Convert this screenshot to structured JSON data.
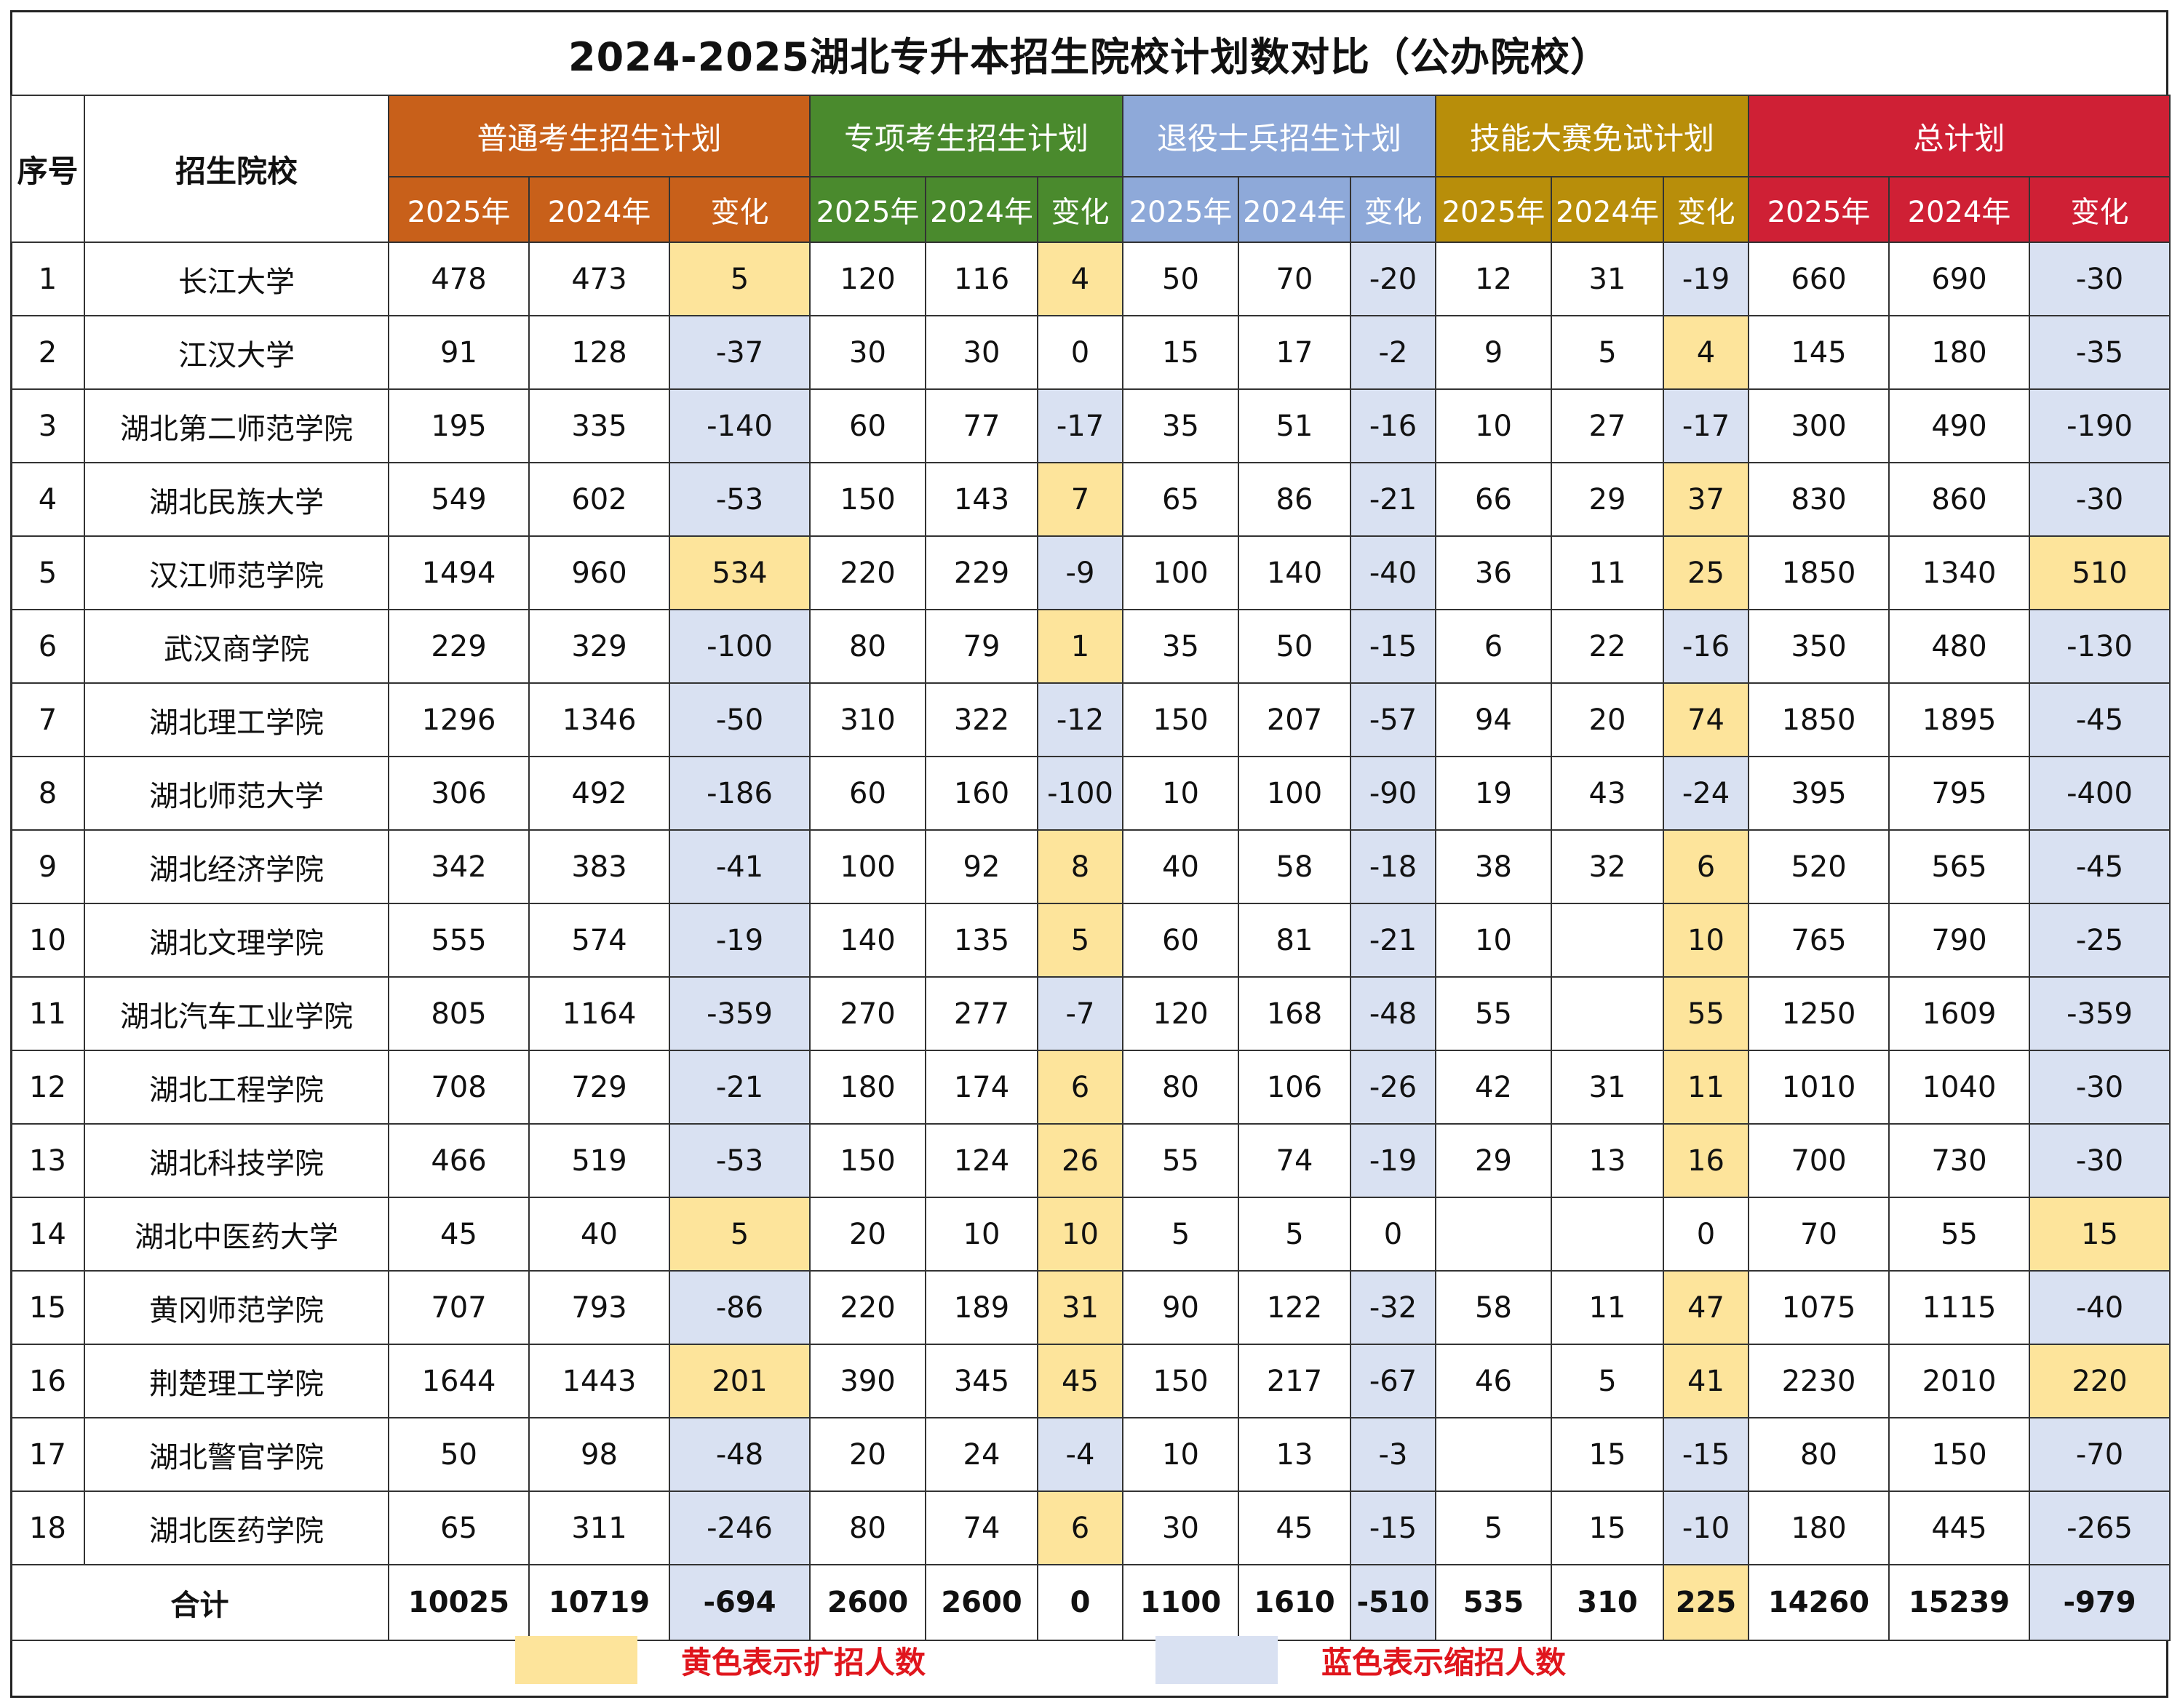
{
  "title": "2024-2025湖北专升本招生院校计划数对比（公办院校）",
  "headers": {
    "index": "序号",
    "school": "招生院校",
    "groups": [
      {
        "label": "普通考生招生计划",
        "color": "#c8601a"
      },
      {
        "label": "专项考生招生计划",
        "color": "#4a8a2d"
      },
      {
        "label": "退役士兵招生计划",
        "color": "#8ea9d9"
      },
      {
        "label": "技能大赛免试计划",
        "color": "#b88e0a"
      },
      {
        "label": "总计划",
        "color": "#cf2035"
      }
    ],
    "sub": [
      "2025年",
      "2024年",
      "变化"
    ]
  },
  "rows": [
    {
      "idx": "1",
      "school": "长江大学",
      "cells": [
        "478",
        "473",
        "5",
        "120",
        "116",
        "4",
        "50",
        "70",
        "-20",
        "12",
        "31",
        "-19",
        "660",
        "690",
        "-30"
      ],
      "marks": [
        "",
        "",
        "up",
        "",
        "",
        "up",
        "",
        "",
        "down",
        "",
        "",
        "down",
        "",
        "",
        "down"
      ]
    },
    {
      "idx": "2",
      "school": "江汉大学",
      "cells": [
        "91",
        "128",
        "-37",
        "30",
        "30",
        "0",
        "15",
        "17",
        "-2",
        "9",
        "5",
        "4",
        "145",
        "180",
        "-35"
      ],
      "marks": [
        "",
        "",
        "down",
        "",
        "",
        "",
        "",
        "",
        "down",
        "",
        "",
        "up",
        "",
        "",
        "down"
      ]
    },
    {
      "idx": "3",
      "school": "湖北第二师范学院",
      "cells": [
        "195",
        "335",
        "-140",
        "60",
        "77",
        "-17",
        "35",
        "51",
        "-16",
        "10",
        "27",
        "-17",
        "300",
        "490",
        "-190"
      ],
      "marks": [
        "",
        "",
        "down",
        "",
        "",
        "down",
        "",
        "",
        "down",
        "",
        "",
        "down",
        "",
        "",
        "down"
      ]
    },
    {
      "idx": "4",
      "school": "湖北民族大学",
      "cells": [
        "549",
        "602",
        "-53",
        "150",
        "143",
        "7",
        "65",
        "86",
        "-21",
        "66",
        "29",
        "37",
        "830",
        "860",
        "-30"
      ],
      "marks": [
        "",
        "",
        "down",
        "",
        "",
        "up",
        "",
        "",
        "down",
        "",
        "",
        "up",
        "",
        "",
        "down"
      ]
    },
    {
      "idx": "5",
      "school": "汉江师范学院",
      "cells": [
        "1494",
        "960",
        "534",
        "220",
        "229",
        "-9",
        "100",
        "140",
        "-40",
        "36",
        "11",
        "25",
        "1850",
        "1340",
        "510"
      ],
      "marks": [
        "",
        "",
        "up",
        "",
        "",
        "down",
        "",
        "",
        "down",
        "",
        "",
        "up",
        "",
        "",
        "up"
      ]
    },
    {
      "idx": "6",
      "school": "武汉商学院",
      "cells": [
        "229",
        "329",
        "-100",
        "80",
        "79",
        "1",
        "35",
        "50",
        "-15",
        "6",
        "22",
        "-16",
        "350",
        "480",
        "-130"
      ],
      "marks": [
        "",
        "",
        "down",
        "",
        "",
        "up",
        "",
        "",
        "down",
        "",
        "",
        "down",
        "",
        "",
        "down"
      ]
    },
    {
      "idx": "7",
      "school": "湖北理工学院",
      "cells": [
        "1296",
        "1346",
        "-50",
        "310",
        "322",
        "-12",
        "150",
        "207",
        "-57",
        "94",
        "20",
        "74",
        "1850",
        "1895",
        "-45"
      ],
      "marks": [
        "",
        "",
        "down",
        "",
        "",
        "down",
        "",
        "",
        "down",
        "",
        "",
        "up",
        "",
        "",
        "down"
      ]
    },
    {
      "idx": "8",
      "school": "湖北师范大学",
      "cells": [
        "306",
        "492",
        "-186",
        "60",
        "160",
        "-100",
        "10",
        "100",
        "-90",
        "19",
        "43",
        "-24",
        "395",
        "795",
        "-400"
      ],
      "marks": [
        "",
        "",
        "down",
        "",
        "",
        "down",
        "",
        "",
        "down",
        "",
        "",
        "down",
        "",
        "",
        "down"
      ]
    },
    {
      "idx": "9",
      "school": "湖北经济学院",
      "cells": [
        "342",
        "383",
        "-41",
        "100",
        "92",
        "8",
        "40",
        "58",
        "-18",
        "38",
        "32",
        "6",
        "520",
        "565",
        "-45"
      ],
      "marks": [
        "",
        "",
        "down",
        "",
        "",
        "up",
        "",
        "",
        "down",
        "",
        "",
        "up",
        "",
        "",
        "down"
      ]
    },
    {
      "idx": "10",
      "school": "湖北文理学院",
      "cells": [
        "555",
        "574",
        "-19",
        "140",
        "135",
        "5",
        "60",
        "81",
        "-21",
        "10",
        "",
        "10",
        "765",
        "790",
        "-25"
      ],
      "marks": [
        "",
        "",
        "down",
        "",
        "",
        "up",
        "",
        "",
        "down",
        "",
        "",
        "up",
        "",
        "",
        "down"
      ]
    },
    {
      "idx": "11",
      "school": "湖北汽车工业学院",
      "cells": [
        "805",
        "1164",
        "-359",
        "270",
        "277",
        "-7",
        "120",
        "168",
        "-48",
        "55",
        "",
        "55",
        "1250",
        "1609",
        "-359"
      ],
      "marks": [
        "",
        "",
        "down",
        "",
        "",
        "down",
        "",
        "",
        "down",
        "",
        "",
        "up",
        "",
        "",
        "down"
      ]
    },
    {
      "idx": "12",
      "school": "湖北工程学院",
      "cells": [
        "708",
        "729",
        "-21",
        "180",
        "174",
        "6",
        "80",
        "106",
        "-26",
        "42",
        "31",
        "11",
        "1010",
        "1040",
        "-30"
      ],
      "marks": [
        "",
        "",
        "down",
        "",
        "",
        "up",
        "",
        "",
        "down",
        "",
        "",
        "up",
        "",
        "",
        "down"
      ]
    },
    {
      "idx": "13",
      "school": "湖北科技学院",
      "cells": [
        "466",
        "519",
        "-53",
        "150",
        "124",
        "26",
        "55",
        "74",
        "-19",
        "29",
        "13",
        "16",
        "700",
        "730",
        "-30"
      ],
      "marks": [
        "",
        "",
        "down",
        "",
        "",
        "up",
        "",
        "",
        "down",
        "",
        "",
        "up",
        "",
        "",
        "down"
      ]
    },
    {
      "idx": "14",
      "school": "湖北中医药大学",
      "cells": [
        "45",
        "40",
        "5",
        "20",
        "10",
        "10",
        "5",
        "5",
        "0",
        "",
        "",
        "0",
        "70",
        "55",
        "15"
      ],
      "marks": [
        "",
        "",
        "up",
        "",
        "",
        "up",
        "",
        "",
        "",
        "",
        "",
        "",
        "",
        "",
        "up"
      ]
    },
    {
      "idx": "15",
      "school": "黄冈师范学院",
      "cells": [
        "707",
        "793",
        "-86",
        "220",
        "189",
        "31",
        "90",
        "122",
        "-32",
        "58",
        "11",
        "47",
        "1075",
        "1115",
        "-40"
      ],
      "marks": [
        "",
        "",
        "down",
        "",
        "",
        "up",
        "",
        "",
        "down",
        "",
        "",
        "up",
        "",
        "",
        "down"
      ]
    },
    {
      "idx": "16",
      "school": "荆楚理工学院",
      "cells": [
        "1644",
        "1443",
        "201",
        "390",
        "345",
        "45",
        "150",
        "217",
        "-67",
        "46",
        "5",
        "41",
        "2230",
        "2010",
        "220"
      ],
      "marks": [
        "",
        "",
        "up",
        "",
        "",
        "up",
        "",
        "",
        "down",
        "",
        "",
        "up",
        "",
        "",
        "up"
      ]
    },
    {
      "idx": "17",
      "school": "湖北警官学院",
      "cells": [
        "50",
        "98",
        "-48",
        "20",
        "24",
        "-4",
        "10",
        "13",
        "-3",
        "",
        "15",
        "-15",
        "80",
        "150",
        "-70"
      ],
      "marks": [
        "",
        "",
        "down",
        "",
        "",
        "down",
        "",
        "",
        "down",
        "",
        "",
        "down",
        "",
        "",
        "down"
      ]
    },
    {
      "idx": "18",
      "school": "湖北医药学院",
      "cells": [
        "65",
        "311",
        "-246",
        "80",
        "74",
        "6",
        "30",
        "45",
        "-15",
        "5",
        "15",
        "-10",
        "180",
        "445",
        "-265"
      ],
      "marks": [
        "",
        "",
        "down",
        "",
        "",
        "up",
        "",
        "",
        "down",
        "",
        "",
        "down",
        "",
        "",
        "down"
      ]
    }
  ],
  "total": {
    "label": "合计",
    "cells": [
      "10025",
      "10719",
      "-694",
      "2600",
      "2600",
      "0",
      "1100",
      "1610",
      "-510",
      "535",
      "310",
      "225",
      "14260",
      "15239",
      "-979"
    ],
    "marks": [
      "",
      "",
      "down",
      "",
      "",
      "",
      "",
      "",
      "down",
      "",
      "",
      "up",
      "",
      "",
      "down"
    ]
  },
  "legend": {
    "up_label": "黄色表示扩招人数",
    "up_color": "#fde49b",
    "down_label": "蓝色表示缩招人数",
    "down_color": "#d9e1f2"
  }
}
